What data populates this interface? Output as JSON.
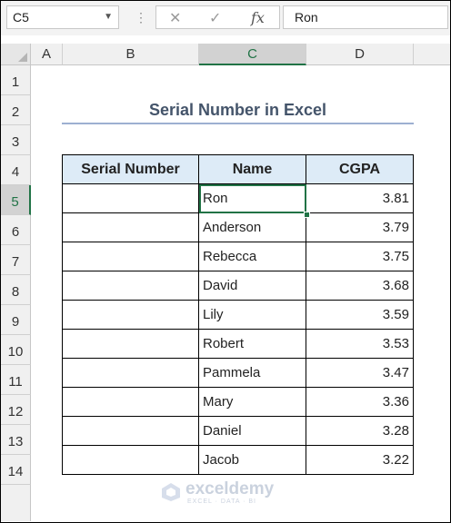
{
  "formula_bar": {
    "name_box": "C5",
    "cancel_icon": "✕",
    "enter_icon": "✓",
    "fx_label": "fx",
    "formula": "Ron"
  },
  "columns": [
    "A",
    "B",
    "C",
    "D"
  ],
  "rows": [
    "1",
    "2",
    "3",
    "4",
    "5",
    "6",
    "7",
    "8",
    "9",
    "10",
    "11",
    "12",
    "13",
    "14"
  ],
  "selected_cell": "C5",
  "title": "Serial Number in Excel",
  "table": {
    "headers": [
      "Serial Number",
      "Name",
      "CGPA"
    ],
    "rows": [
      {
        "serial": "",
        "name": "Ron",
        "cgpa": "3.81"
      },
      {
        "serial": "",
        "name": "Anderson",
        "cgpa": "3.79"
      },
      {
        "serial": "",
        "name": "Rebecca",
        "cgpa": "3.75"
      },
      {
        "serial": "",
        "name": "David",
        "cgpa": "3.68"
      },
      {
        "serial": "",
        "name": "Lily",
        "cgpa": "3.59"
      },
      {
        "serial": "",
        "name": "Robert",
        "cgpa": "3.53"
      },
      {
        "serial": "",
        "name": "Pammela",
        "cgpa": "3.47"
      },
      {
        "serial": "",
        "name": "Mary",
        "cgpa": "3.36"
      },
      {
        "serial": "",
        "name": "Daniel",
        "cgpa": "3.28"
      },
      {
        "serial": "",
        "name": "Jacob",
        "cgpa": "3.22"
      }
    ]
  },
  "watermark": {
    "brand": "exceldemy",
    "tagline": "EXCEL · DATA · BI"
  },
  "colors": {
    "accent": "#217346",
    "header_fill": "#ddebf7",
    "title": "#44546a"
  }
}
